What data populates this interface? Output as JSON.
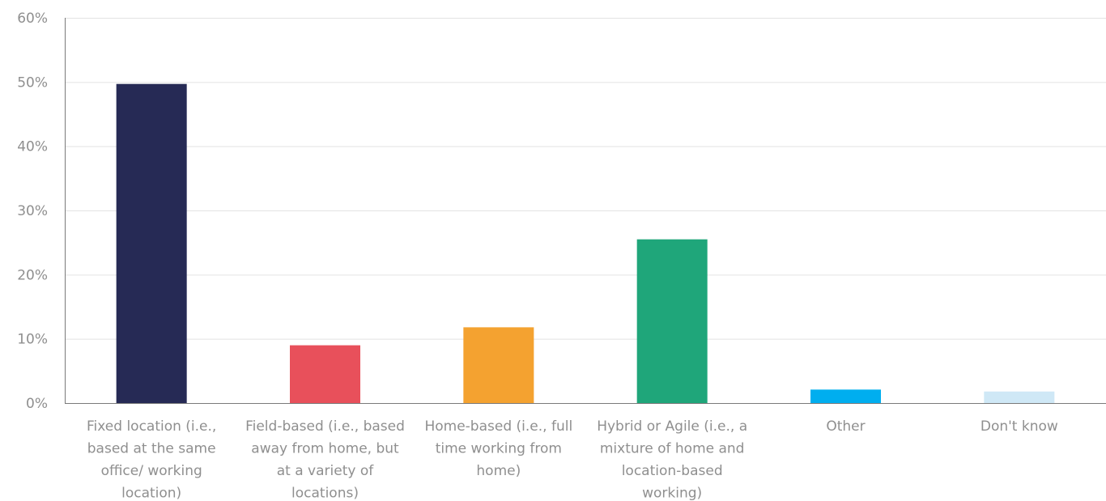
{
  "chart_data": {
    "type": "bar",
    "title": "",
    "xlabel": "",
    "ylabel": "",
    "categories": [
      "Fixed location (i.e., based at the same office/ working location)",
      "Field-based (i.e., based away from home, but at a variety of locations)",
      "Home-based (i.e., full time working from home)",
      "Hybrid or Agile (i.e., a mixture of home and location-based working)",
      "Other",
      "Don't know"
    ],
    "category_lines": [
      [
        "Fixed location (i.e.,",
        "based at the same",
        "office/ working",
        "location)"
      ],
      [
        "Field-based (i.e., based",
        "away from home, but",
        "at a variety of",
        "locations)"
      ],
      [
        "Home-based (i.e., full",
        "time working from",
        "home)"
      ],
      [
        "Hybrid or Agile (i.e., a",
        "mixture of home and",
        "location-based",
        "working)"
      ],
      [
        "Other"
      ],
      [
        "Don't know"
      ]
    ],
    "values": [
      49.7,
      9.0,
      11.8,
      25.5,
      2.1,
      1.8
    ],
    "colors": [
      "#262a55",
      "#e8505b",
      "#f4a230",
      "#1fa67a",
      "#00aeef",
      "#cfe8f6"
    ],
    "ylim": [
      0,
      60
    ],
    "yticks": [
      0,
      10,
      20,
      30,
      40,
      50,
      60
    ],
    "ytick_labels": [
      "0%",
      "10%",
      "20%",
      "30%",
      "40%",
      "50%",
      "60%"
    ],
    "grid": true,
    "legend": "none"
  }
}
